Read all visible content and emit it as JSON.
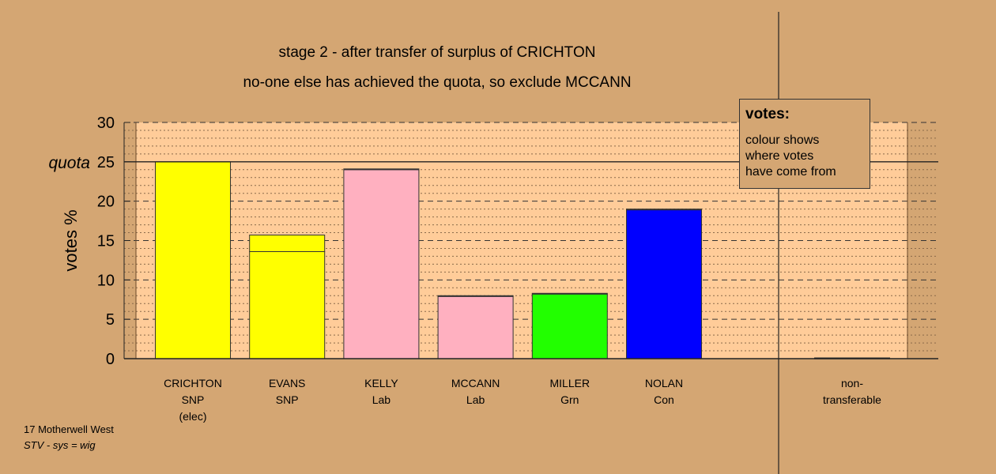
{
  "title_lines": [
    "stage 2 - after transfer of surplus of CRICHTON",
    "no-one else has achieved the quota, so exclude MCCANN"
  ],
  "legend": {
    "title": "votes:",
    "lines": [
      "colour shows",
      "where votes",
      "have come from"
    ]
  },
  "footer": {
    "ward": "17 Motherwell West",
    "system": "STV - sys = wig"
  },
  "chart_data": {
    "type": "bar",
    "ylabel": "votes %",
    "ylim": [
      0,
      30
    ],
    "yticks": [
      0,
      5,
      10,
      15,
      20,
      25,
      30
    ],
    "quota": {
      "label": "quota",
      "value": 25
    },
    "grid": true,
    "candidates": [
      {
        "name": "CRICHTON",
        "party": "SNP",
        "status": "(elec)",
        "value": 25.0,
        "segments": [
          {
            "value": 25.0,
            "color": "#ffff00"
          }
        ]
      },
      {
        "name": "EVANS",
        "party": "SNP",
        "status": "",
        "value": 15.7,
        "segments": [
          {
            "value": 13.6,
            "color": "#ffff00"
          },
          {
            "value": 2.1,
            "color": "#ffff00"
          }
        ]
      },
      {
        "name": "KELLY",
        "party": "Lab",
        "status": "",
        "value": 24.1,
        "segments": [
          {
            "value": 24.0,
            "color": "#ffb0c0"
          },
          {
            "value": 0.1,
            "color": "#ffff00"
          }
        ]
      },
      {
        "name": "MCCANN",
        "party": "Lab",
        "status": "",
        "value": 8.0,
        "segments": [
          {
            "value": 7.9,
            "color": "#ffb0c0"
          },
          {
            "value": 0.1,
            "color": "#ffff00"
          }
        ]
      },
      {
        "name": "MILLER",
        "party": "Grn",
        "status": "",
        "value": 8.3,
        "segments": [
          {
            "value": 8.2,
            "color": "#22ff00"
          },
          {
            "value": 0.1,
            "color": "#ffff00"
          }
        ]
      },
      {
        "name": "NOLAN",
        "party": "Con",
        "status": "",
        "value": 19.0,
        "segments": [
          {
            "value": 18.9,
            "color": "#0000ff"
          },
          {
            "value": 0.1,
            "color": "#ffff00"
          }
        ]
      }
    ],
    "non_transferable": {
      "label_lines": [
        "non-",
        "transferable"
      ],
      "value": 0.1
    }
  }
}
